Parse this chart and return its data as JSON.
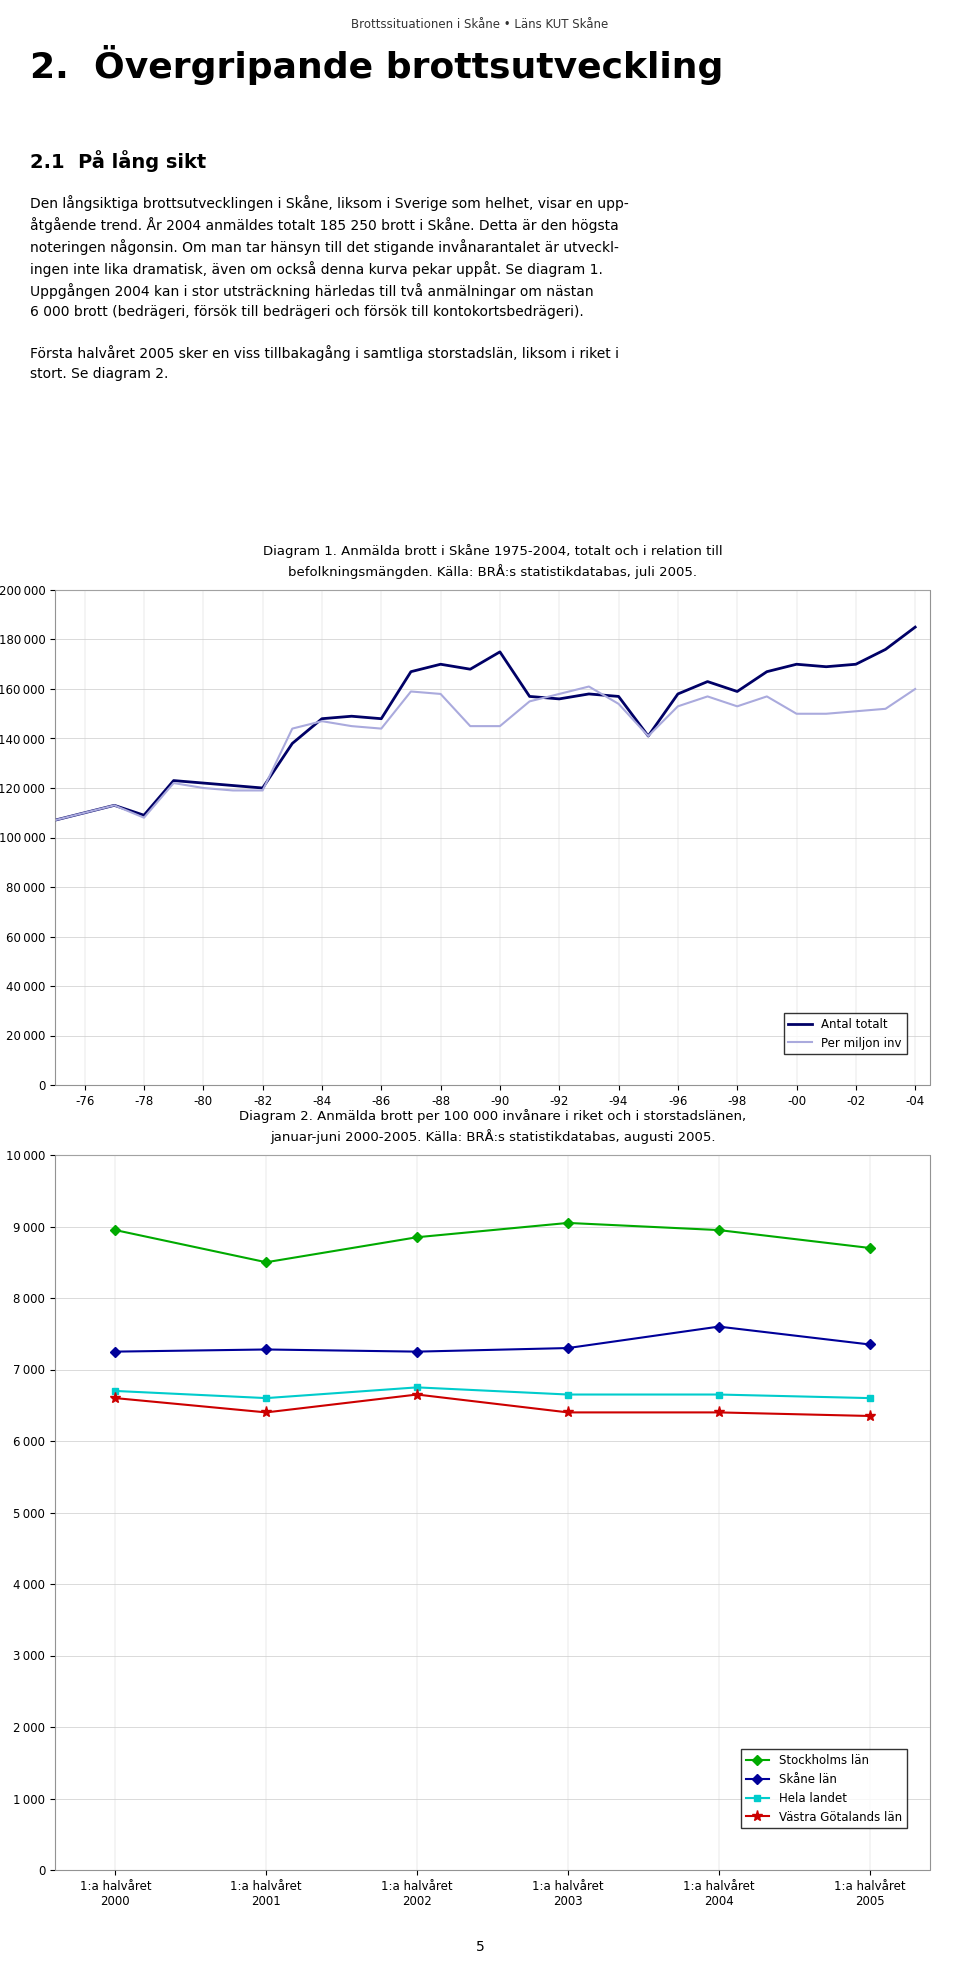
{
  "header": "Brottssituationen i Skåne • Läns KUT Skåne",
  "chapter_title": "2.  Övergripande brottsutveckling",
  "section_title": "2.1  På lång sikt",
  "body_text1": "Den långsiktiga brottsutvecklingen i Skåne, liksom i Sverige som helhet, visar en upp-\nåtgående trend. År 2004 anmäldes totalt 185 250 brott i Skåne. Detta är den högsta\nnoteringen någonsin. Om man tar hänsyn till det stigande invånarantalet är utvecklingen inte lika dramatisk, även om också denna kurva pekar uppåt. Se diagram 1.",
  "body_text2": "Uppgången 2004 kan i stor utsträckning härledas till två anmälningar om nästan\n6 000 brott (bedrägeri, försök till bedrägeri och försök till kontokortsbedrägeri).",
  "body_text3": "Första halvåret 2005 sker en viss tillbakagång i samtliga storstadslän, liksom i riket i\nstort. Se diagram 2.",
  "diag1_title": "Diagram 1. Anmälda brott i Skåne 1975-2004, totalt och i relation till\nbefolkningsmängden. Källa: BRÅ:s statistikdatabas, juli 2005.",
  "diag1_years": [
    "-76",
    "-78",
    "-80",
    "-82",
    "-84",
    "-86",
    "-88",
    "-90",
    "-92",
    "-94",
    "-96",
    "-98",
    "-00",
    "-02",
    "-04"
  ],
  "diag1_total": [
    107000,
    110000,
    113000,
    109000,
    123000,
    122000,
    121000,
    120000,
    138000,
    148000,
    149000,
    148000,
    167000,
    170000,
    168000,
    175000,
    157000,
    156000,
    158000,
    157000,
    141000,
    158000,
    163000,
    159000,
    167000,
    170000,
    169000,
    170000,
    176000,
    185000
  ],
  "diag1_permiljon": [
    107000,
    110000,
    113000,
    108000,
    122000,
    120000,
    119000,
    119000,
    144000,
    147000,
    145000,
    144000,
    159000,
    158000,
    145000,
    145000,
    155000,
    158000,
    161000,
    154000,
    141000,
    153000,
    157000,
    153000,
    157000,
    150000,
    150000,
    151000,
    152000,
    160000
  ],
  "diag1_ylim": [
    0,
    200000
  ],
  "diag1_yticks": [
    0,
    20000,
    40000,
    60000,
    80000,
    100000,
    120000,
    140000,
    160000,
    180000,
    200000
  ],
  "diag1_xlabel_vals": [
    1975,
    1976,
    1977,
    1978,
    1979,
    1980,
    1981,
    1982,
    1983,
    1984,
    1985,
    1986,
    1987,
    1988,
    1989,
    1990,
    1991,
    1992,
    1993,
    1994,
    1995,
    1996,
    1997,
    1998,
    1999,
    2000,
    2001,
    2002,
    2003,
    2004
  ],
  "diag1_xtick_years": [
    1976,
    1978,
    1980,
    1982,
    1984,
    1986,
    1988,
    1990,
    1992,
    1994,
    1996,
    1998,
    2000,
    2002,
    2004
  ],
  "diag1_color_total": "#000066",
  "diag1_color_permiljon": "#AAAADD",
  "diag2_title": "Diagram 2. Anmälda brott per 100 000 invånare i riket och i storstadslänen,\njanuar-juni 2000-2005. Källa: BRÅ:s statistikdatabas, augusti 2005.",
  "diag2_xlabels": [
    "1:a halvåret\n2000",
    "1:a halvåret\n2001",
    "1:a halvåret\n2002",
    "1:a halvåret\n2003",
    "1:a halvåret\n2004",
    "1:a halvåret\n2005"
  ],
  "diag2_stockholm": [
    8950,
    8500,
    8850,
    9050,
    8950,
    8700
  ],
  "diag2_skane": [
    7250,
    7280,
    7250,
    7300,
    7600,
    7350
  ],
  "diag2_hela": [
    6700,
    6600,
    6750,
    6650,
    6650,
    6600
  ],
  "diag2_vastragotaland": [
    6600,
    6400,
    6650,
    6400,
    6400,
    6350
  ],
  "diag2_ylim": [
    0,
    10000
  ],
  "diag2_yticks": [
    0,
    1000,
    2000,
    3000,
    4000,
    5000,
    6000,
    7000,
    8000,
    9000,
    10000
  ],
  "diag2_color_stockholm": "#00AA00",
  "diag2_color_skane": "#000099",
  "diag2_color_hela": "#00CCCC",
  "diag2_color_vastragotaland": "#CC0000",
  "page_number": "5",
  "bg_color": "#FFFFFF",
  "text_color": "#000000"
}
